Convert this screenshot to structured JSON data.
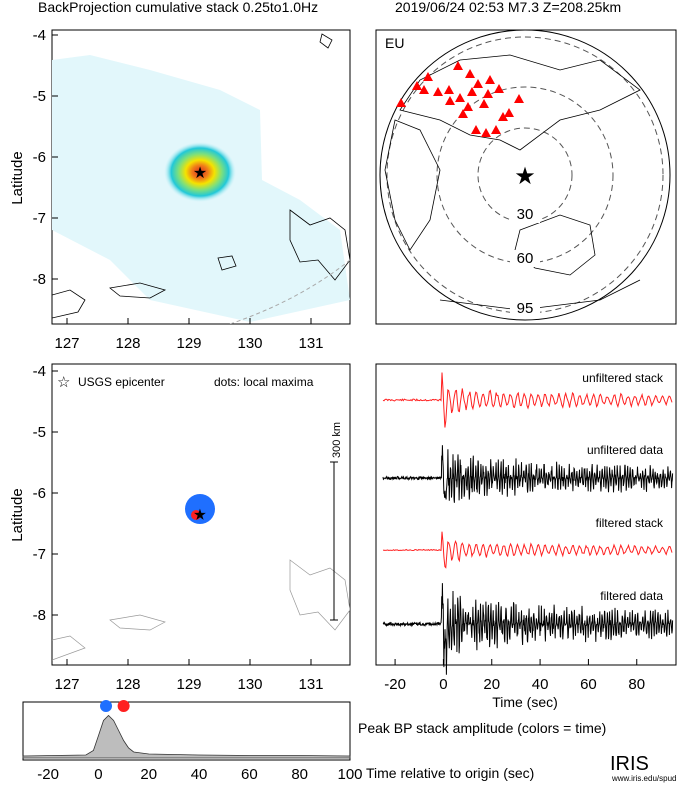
{
  "header": {
    "left_title": "BackProjection cumulative stack 0.25to1.0Hz",
    "right_title": "2019/06/24 02:53   M7.3   Z=208.25km"
  },
  "colors": {
    "hotspot_core": "#d7301f",
    "hotspot_mid": "#f5e300",
    "hotspot_outer": "#21c8d8",
    "halo": "#e2f7fb",
    "station": "#ff0000",
    "epicenter_star": "#2233ff",
    "blue_dot": "#1f6fff",
    "red_dot": "#ff2020",
    "stack_trace": "#ff2020",
    "data_trace": "#000000",
    "hist_fill": "#bdbdbd"
  },
  "chart_data": [
    {
      "type": "heatmap",
      "panel": "top-left map",
      "title": "BackProjection cumulative stack 0.25to1.0Hz",
      "ylabel": "Latitude",
      "x_ticks": [
        "127",
        "128",
        "129",
        "130",
        "131"
      ],
      "y_ticks": [
        "-4",
        "-5",
        "-6",
        "-7",
        "-8"
      ],
      "xlim": [
        126.7,
        131.8
      ],
      "ylim": [
        -8.85,
        -3.9
      ],
      "peak": {
        "lon": 129.2,
        "lat": -6.35
      },
      "epicenter": {
        "lon": 129.2,
        "lat": -6.35
      }
    },
    {
      "type": "scatter",
      "panel": "top-right azimuthal map",
      "label": "EU",
      "ring_labels": [
        "30",
        "60",
        "95"
      ],
      "station_count": 24
    },
    {
      "type": "scatter",
      "panel": "bottom-left map",
      "ylabel": "Latitude",
      "x_ticks": [
        "127",
        "128",
        "129",
        "130",
        "131"
      ],
      "y_ticks": [
        "-4",
        "-5",
        "-6",
        "-7",
        "-8"
      ],
      "legend_epicenter": "USGS epicenter",
      "legend_dots": "dots: local maxima",
      "scale_label": "300 km",
      "maxima": [
        {
          "lon": 129.18,
          "lat": -6.27,
          "color": "blue"
        },
        {
          "lon": 129.1,
          "lat": -6.38,
          "color": "red"
        }
      ]
    },
    {
      "type": "line",
      "panel": "bottom-right seismograms",
      "xlabel": "Time (sec)",
      "x_ticks": [
        "-20",
        "0",
        "20",
        "40",
        "60",
        "80"
      ],
      "xlim": [
        -25,
        95
      ],
      "traces": [
        "unfiltered stack",
        "unfiltered data",
        "filtered stack",
        "filtered data"
      ],
      "onset_sec": 0
    },
    {
      "type": "area",
      "panel": "bottom peak amplitude",
      "title": "Peak BP stack amplitude (colors = time)",
      "xlabel": "Time relative to origin (sec)",
      "x_ticks": [
        "-20",
        "0",
        "20",
        "40",
        "60",
        "80",
        "100"
      ],
      "xlim": [
        -30,
        100
      ],
      "x": [
        -30,
        -5,
        -2,
        0,
        2,
        4,
        6,
        8,
        10,
        12,
        14,
        20,
        40,
        60,
        80,
        100
      ],
      "values": [
        0.04,
        0.06,
        0.15,
        0.45,
        0.75,
        0.85,
        0.75,
        0.55,
        0.35,
        0.2,
        0.12,
        0.08,
        0.06,
        0.05,
        0.05,
        0.04
      ],
      "dots": [
        {
          "x": 3,
          "color": "blue"
        },
        {
          "x": 10,
          "color": "red"
        }
      ]
    }
  ],
  "footer": {
    "logo": "IRIS",
    "url": "www.iris.edu/spud"
  }
}
